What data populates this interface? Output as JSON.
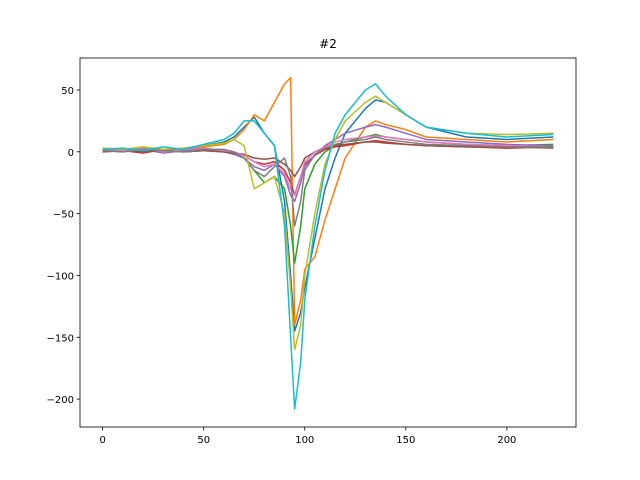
{
  "chart_data": {
    "type": "line",
    "title": "#2",
    "x": [
      0,
      10,
      20,
      30,
      40,
      50,
      60,
      65,
      70,
      75,
      80,
      85,
      90,
      93,
      95,
      98,
      100,
      105,
      110,
      115,
      120,
      130,
      135,
      140,
      150,
      160,
      180,
      200,
      223
    ],
    "series": [
      {
        "color": "#1f77b4",
        "values": [
          2,
          0,
          3,
          1,
          2,
          5,
          8,
          12,
          20,
          28,
          15,
          5,
          -40,
          -100,
          -145,
          -130,
          -110,
          -70,
          -30,
          -5,
          15,
          35,
          42,
          40,
          30,
          20,
          12,
          10,
          12
        ]
      },
      {
        "color": "#ff7f0e",
        "values": [
          3,
          2,
          -1,
          2,
          1,
          4,
          6,
          10,
          18,
          30,
          25,
          40,
          55,
          60,
          -140,
          -120,
          -95,
          -85,
          -55,
          -30,
          -5,
          20,
          25,
          22,
          18,
          12,
          10,
          8,
          10
        ]
      },
      {
        "color": "#2ca02c",
        "values": [
          1,
          2,
          0,
          1,
          3,
          2,
          0,
          -2,
          -5,
          -15,
          -25,
          -20,
          -30,
          -60,
          -90,
          -60,
          -30,
          -10,
          0,
          5,
          8,
          12,
          14,
          12,
          10,
          8,
          6,
          5,
          6
        ]
      },
      {
        "color": "#d62728",
        "values": [
          0,
          1,
          -1,
          2,
          0,
          1,
          0,
          -1,
          -3,
          -8,
          -10,
          -8,
          -15,
          -25,
          -35,
          -20,
          -10,
          -3,
          2,
          4,
          5,
          8,
          9,
          8,
          6,
          5,
          4,
          3,
          4
        ]
      },
      {
        "color": "#9467bd",
        "values": [
          1,
          0,
          2,
          -1,
          1,
          2,
          0,
          -2,
          -5,
          -12,
          -15,
          -10,
          -20,
          -35,
          -40,
          -25,
          -12,
          -3,
          5,
          10,
          15,
          20,
          22,
          20,
          15,
          10,
          8,
          6,
          5
        ]
      },
      {
        "color": "#8c564b",
        "values": [
          0,
          1,
          0,
          1,
          0,
          1,
          0,
          -1,
          -2,
          -5,
          -6,
          -5,
          -10,
          -15,
          -20,
          -12,
          -5,
          0,
          3,
          5,
          6,
          8,
          8,
          7,
          6,
          5,
          4,
          4,
          3
        ]
      },
      {
        "color": "#e377c2",
        "values": [
          2,
          1,
          3,
          0,
          2,
          3,
          1,
          0,
          -3,
          -8,
          -12,
          -10,
          -18,
          -30,
          -35,
          -20,
          -8,
          0,
          4,
          8,
          10,
          12,
          13,
          12,
          10,
          8,
          6,
          5,
          4
        ]
      },
      {
        "color": "#7f7f7f",
        "values": [
          1,
          0,
          2,
          1,
          0,
          2,
          2,
          0,
          -5,
          -15,
          -20,
          -12,
          -5,
          -20,
          -60,
          -40,
          -15,
          -2,
          3,
          6,
          8,
          10,
          12,
          10,
          8,
          6,
          5,
          4,
          4
        ]
      },
      {
        "color": "#bcbd22",
        "values": [
          3,
          2,
          4,
          2,
          3,
          5,
          7,
          10,
          5,
          -30,
          -25,
          -20,
          -50,
          -110,
          -160,
          -140,
          -100,
          -50,
          -10,
          10,
          25,
          40,
          45,
          40,
          30,
          20,
          15,
          14,
          15
        ]
      },
      {
        "color": "#17becf",
        "values": [
          2,
          3,
          1,
          4,
          2,
          6,
          10,
          15,
          25,
          25,
          15,
          5,
          -60,
          -150,
          -208,
          -170,
          -120,
          -60,
          -15,
          15,
          30,
          50,
          55,
          45,
          30,
          20,
          15,
          12,
          14
        ]
      }
    ],
    "xlim": [
      -11.2,
      234.2
    ],
    "xticks": [
      0,
      50,
      100,
      150,
      200
    ],
    "ylim": [
      -222.6,
      75.9
    ],
    "yticks": [
      {
        "value": -200,
        "label": "−200"
      },
      {
        "value": -150,
        "label": "−150"
      },
      {
        "value": -100,
        "label": "−100"
      },
      {
        "value": -50,
        "label": "−50"
      },
      0,
      50
    ]
  }
}
